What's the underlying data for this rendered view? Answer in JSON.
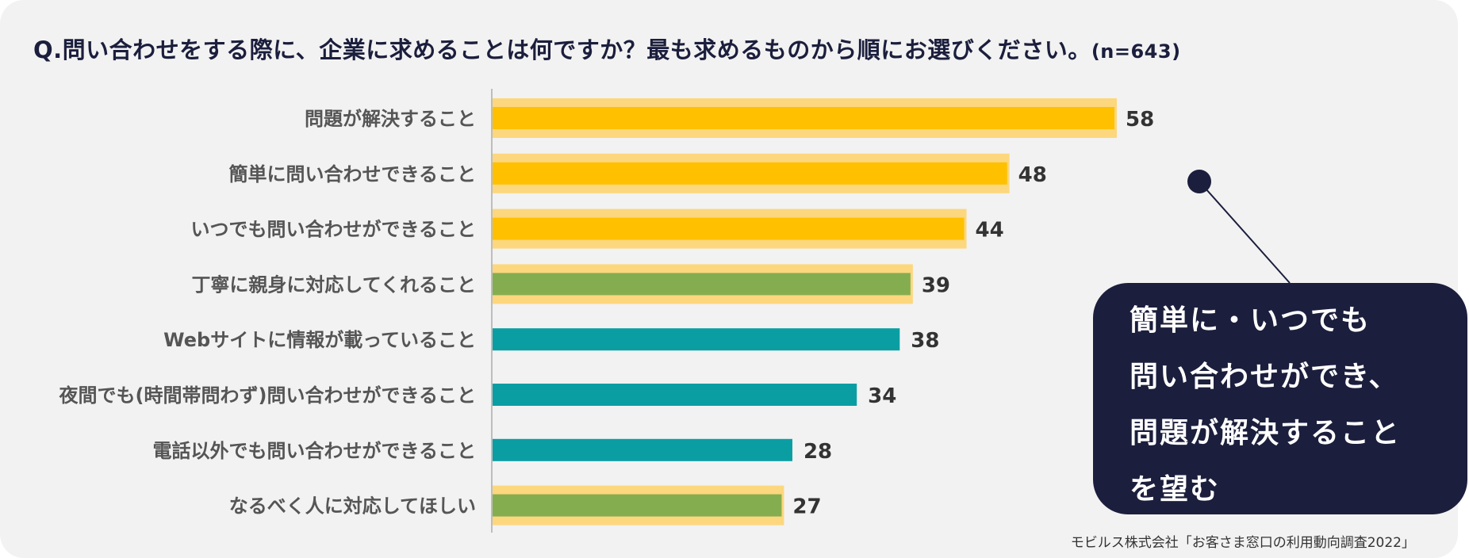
{
  "title": "Q.問い合わせをする際に、企業に求めることは何ですか？最も求めるものから順にお選びください。",
  "sample": "(n=643)",
  "chart_data": {
    "type": "bar",
    "orientation": "horizontal",
    "categories": [
      "問題が解決すること",
      "簡単に問い合わせできること",
      "いつでも問い合わせができること",
      "丁寧に親身に対応してくれること",
      "Webサイトに情報が載っていること",
      "夜間でも(時間帯問わず)問い合わせができること",
      "電話以外でも問い合わせができること",
      "なるべく人に対応してほしい"
    ],
    "values": [
      58,
      48,
      44,
      39,
      38,
      34,
      28,
      27
    ],
    "bar_colors": [
      "#ffc000",
      "#ffc000",
      "#ffc000",
      "#84ad50",
      "#0a9ea3",
      "#0a9ea3",
      "#0a9ea3",
      "#84ad50"
    ],
    "highlighted": [
      true,
      true,
      true,
      true,
      false,
      false,
      false,
      true
    ],
    "highlight_color": "#fcd77d",
    "xlim": [
      0,
      58
    ],
    "grid": false,
    "title": "",
    "xlabel": "",
    "ylabel": ""
  },
  "callout": {
    "lines": [
      "簡単に・いつでも",
      "問い合わせができ、",
      "問題が解決すること",
      "を望む"
    ],
    "background": "#1b1e3c"
  },
  "source": "モビルス株式会社「お客さま窓口の利用動向調査2022」"
}
